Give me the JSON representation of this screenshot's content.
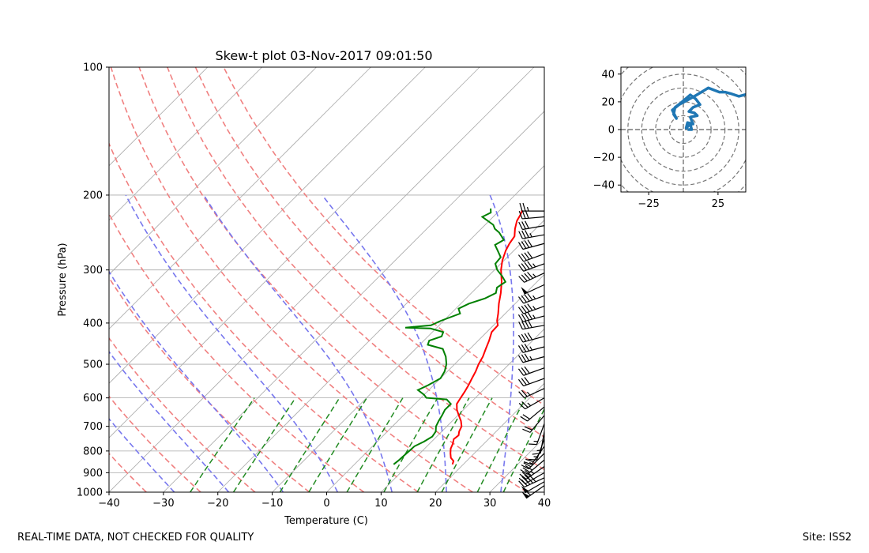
{
  "footer": {
    "quality_notice": "REAL-TIME DATA, NOT CHECKED FOR QUALITY",
    "site": "Site: ISS2"
  },
  "chart_data": [
    {
      "type": "line",
      "name": "skew-t",
      "title": "Skew-t plot 03-Nov-2017 09:01:50",
      "xlabel": "Temperature (C)",
      "ylabel": "Pressure (hPa)",
      "xlim": [
        -40,
        40
      ],
      "ylim": [
        1000,
        100
      ],
      "x_ticks": [
        -40,
        -30,
        -20,
        -10,
        0,
        10,
        20,
        30,
        40
      ],
      "y_ticks": [
        100,
        200,
        300,
        400,
        500,
        600,
        700,
        800,
        900,
        1000
      ],
      "y_scale": "log",
      "isotherms": [
        -100,
        -90,
        -80,
        -70,
        -60,
        -50,
        -40,
        -30,
        -20,
        -10,
        0,
        10,
        20,
        30,
        40
      ],
      "dry_adiabats_theta_K": [
        240,
        250,
        260,
        270,
        280,
        290,
        300,
        310,
        320,
        330,
        340
      ],
      "moist_adiabats_start_C": [
        -28,
        -18,
        -8,
        2,
        12,
        22,
        32
      ],
      "mixing_ratio_lines_g_kg": [
        0.5,
        1,
        2,
        3,
        5,
        8,
        12,
        16,
        24,
        32
      ],
      "mixing_ratio_top_hPa": 600,
      "colors": {
        "temperature": "#ff0000",
        "dewpoint": "#008000",
        "isotherm": "#aaaaaa",
        "dry_adiabat": "#f08080",
        "moist_adiabat": "#7777ee",
        "mixing_ratio": "#228b22",
        "wind_barb": "#000000"
      },
      "series": [
        {
          "name": "Temperature",
          "points": [
            [
              860,
              18.0
            ],
            [
              845,
              17.6
            ],
            [
              830,
              16.5
            ],
            [
              810,
              15.6
            ],
            [
              790,
              14.8
            ],
            [
              770,
              14.3
            ],
            [
              750,
              13.6
            ],
            [
              735,
              13.8
            ],
            [
              720,
              13.2
            ],
            [
              700,
              12.7
            ],
            [
              680,
              11.6
            ],
            [
              660,
              10.2
            ],
            [
              640,
              8.8
            ],
            [
              620,
              7.7
            ],
            [
              600,
              7.3
            ],
            [
              580,
              6.9
            ],
            [
              560,
              6.4
            ],
            [
              540,
              5.8
            ],
            [
              520,
              5.2
            ],
            [
              500,
              4.4
            ],
            [
              480,
              3.8
            ],
            [
              460,
              2.9
            ],
            [
              440,
              2.0
            ],
            [
              420,
              0.9
            ],
            [
              405,
              0.8
            ],
            [
              395,
              -0.2
            ],
            [
              380,
              -1.3
            ],
            [
              360,
              -3.0
            ],
            [
              340,
              -4.6
            ],
            [
              320,
              -6.5
            ],
            [
              300,
              -8.8
            ],
            [
              285,
              -10.3
            ],
            [
              270,
              -11.5
            ],
            [
              260,
              -12.1
            ],
            [
              250,
              -12.5
            ],
            [
              240,
              -13.8
            ],
            [
              230,
              -14.9
            ],
            [
              222,
              -15.4
            ],
            [
              217,
              -15.9
            ]
          ]
        },
        {
          "name": "Dewpoint",
          "points": [
            [
              860,
              7.2
            ],
            [
              840,
              7.4
            ],
            [
              820,
              7.5
            ],
            [
              800,
              7.6
            ],
            [
              780,
              7.7
            ],
            [
              760,
              8.6
            ],
            [
              740,
              9.2
            ],
            [
              720,
              8.9
            ],
            [
              700,
              8.0
            ],
            [
              680,
              7.5
            ],
            [
              660,
              7.1
            ],
            [
              640,
              6.6
            ],
            [
              620,
              6.6
            ],
            [
              605,
              5.0
            ],
            [
              600,
              1.0
            ],
            [
              590,
              0.0
            ],
            [
              575,
              -2.0
            ],
            [
              560,
              -1.0
            ],
            [
              540,
              0.0
            ],
            [
              520,
              -0.5
            ],
            [
              500,
              -1.5
            ],
            [
              480,
              -3.0
            ],
            [
              460,
              -5.0
            ],
            [
              450,
              -8.5
            ],
            [
              440,
              -9.0
            ],
            [
              430,
              -7.5
            ],
            [
              420,
              -8.0
            ],
            [
              412,
              -11.0
            ],
            [
              410,
              -15.8
            ],
            [
              405,
              -11.5
            ],
            [
              395,
              -10.5
            ],
            [
              380,
              -8.3
            ],
            [
              370,
              -9.5
            ],
            [
              360,
              -8.5
            ],
            [
              350,
              -6.5
            ],
            [
              340,
              -5.5
            ],
            [
              330,
              -6.3
            ],
            [
              320,
              -5.8
            ],
            [
              310,
              -7.5
            ],
            [
              300,
              -9.5
            ],
            [
              290,
              -11.0
            ],
            [
              280,
              -11.2
            ],
            [
              270,
              -13.0
            ],
            [
              262,
              -14.5
            ],
            [
              255,
              -13.8
            ],
            [
              245,
              -16.0
            ],
            [
              240,
              -17.5
            ],
            [
              235,
              -18.5
            ],
            [
              225,
              -22.0
            ],
            [
              220,
              -21.2
            ],
            [
              215,
              -22.0
            ]
          ]
        }
      ],
      "wind_barbs": {
        "units": "kt",
        "barbs": [
          [
            965,
            235,
            55
          ],
          [
            945,
            240,
            50
          ],
          [
            925,
            245,
            45
          ],
          [
            900,
            240,
            40
          ],
          [
            870,
            235,
            35
          ],
          [
            840,
            230,
            30
          ],
          [
            810,
            225,
            25
          ],
          [
            780,
            215,
            20
          ],
          [
            750,
            200,
            15
          ],
          [
            720,
            190,
            15
          ],
          [
            690,
            200,
            15
          ],
          [
            660,
            220,
            20
          ],
          [
            630,
            230,
            20
          ],
          [
            600,
            240,
            25
          ],
          [
            570,
            245,
            25
          ],
          [
            540,
            250,
            30
          ],
          [
            510,
            250,
            30
          ],
          [
            480,
            255,
            35
          ],
          [
            455,
            255,
            35
          ],
          [
            430,
            255,
            40
          ],
          [
            405,
            260,
            40
          ],
          [
            385,
            255,
            45
          ],
          [
            365,
            250,
            45
          ],
          [
            345,
            250,
            45
          ],
          [
            325,
            245,
            50
          ],
          [
            305,
            245,
            45
          ],
          [
            290,
            250,
            45
          ],
          [
            275,
            250,
            40
          ],
          [
            260,
            255,
            40
          ],
          [
            248,
            260,
            35
          ],
          [
            236,
            260,
            30
          ],
          [
            225,
            265,
            30
          ],
          [
            218,
            270,
            25
          ]
        ]
      }
    },
    {
      "type": "line",
      "name": "hodograph",
      "xlim": [
        -45,
        45
      ],
      "ylim": [
        -45,
        45
      ],
      "x_ticks": [
        -25,
        25
      ],
      "y_ticks": [
        -40,
        -20,
        0,
        20,
        40
      ],
      "rings": [
        10,
        20,
        30,
        40,
        50,
        60
      ],
      "color": "#1f77b4",
      "series": [
        {
          "name": "wind",
          "points": [
            [
              3,
              0
            ],
            [
              6,
              0
            ],
            [
              5,
              4
            ],
            [
              2,
              1
            ],
            [
              3,
              5
            ],
            [
              7,
              4
            ],
            [
              5,
              9
            ],
            [
              10,
              10
            ],
            [
              8,
              12
            ],
            [
              4,
              13
            ],
            [
              7,
              16
            ],
            [
              12,
              18
            ],
            [
              9,
              22
            ],
            [
              5,
              25
            ],
            [
              -2,
              19
            ],
            [
              -6,
              16
            ],
            [
              -7,
              11
            ],
            [
              -5,
              8
            ],
            [
              -8,
              14
            ],
            [
              -3,
              18
            ],
            [
              8,
              24
            ],
            [
              18,
              30
            ],
            [
              26,
              27
            ],
            [
              30,
              27
            ],
            [
              34,
              26
            ],
            [
              40,
              24
            ],
            [
              44,
              25
            ],
            [
              48,
              26
            ]
          ]
        }
      ]
    }
  ]
}
